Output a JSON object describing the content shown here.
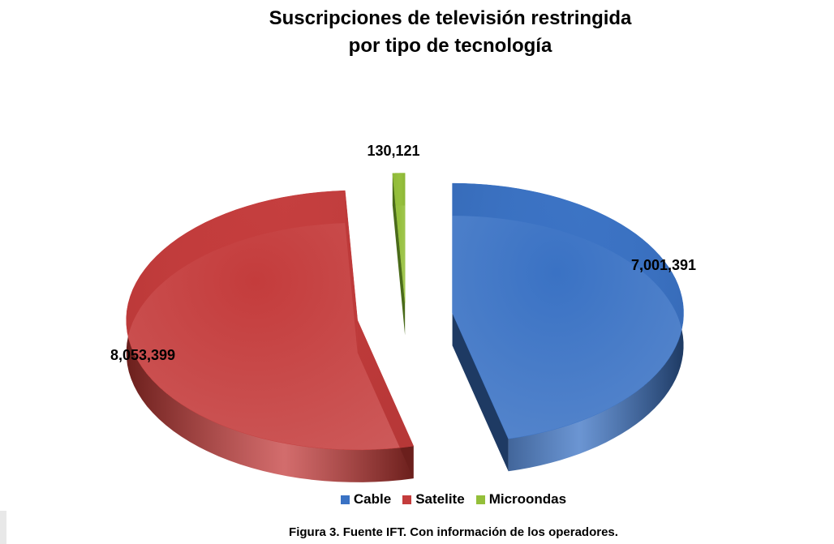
{
  "chart_data": {
    "type": "pie",
    "title_line1": "Suscripciones de televisión restringida",
    "title_line2": "por tipo de tecnología",
    "slices": [
      {
        "name": "Cable",
        "value": 7001391,
        "label": "7,001,391",
        "color": "#3a72c4",
        "side_color": "#1e3a63"
      },
      {
        "name": "Satelite",
        "value": 8053399,
        "label": "8,053,399",
        "color": "#c43c3c",
        "side_color": "#6b1f1c"
      },
      {
        "name": "Microondas",
        "value": 130121,
        "label": "130,121",
        "color": "#94bf3a",
        "side_color": "#4a6b1a"
      }
    ],
    "legend": [
      "Cable",
      "Satelite",
      "Microondas"
    ],
    "legend_position": "bottom",
    "exploded": true,
    "three_d": true
  },
  "caption": "Figura 3. Fuente IFT. Con información de los operadores."
}
